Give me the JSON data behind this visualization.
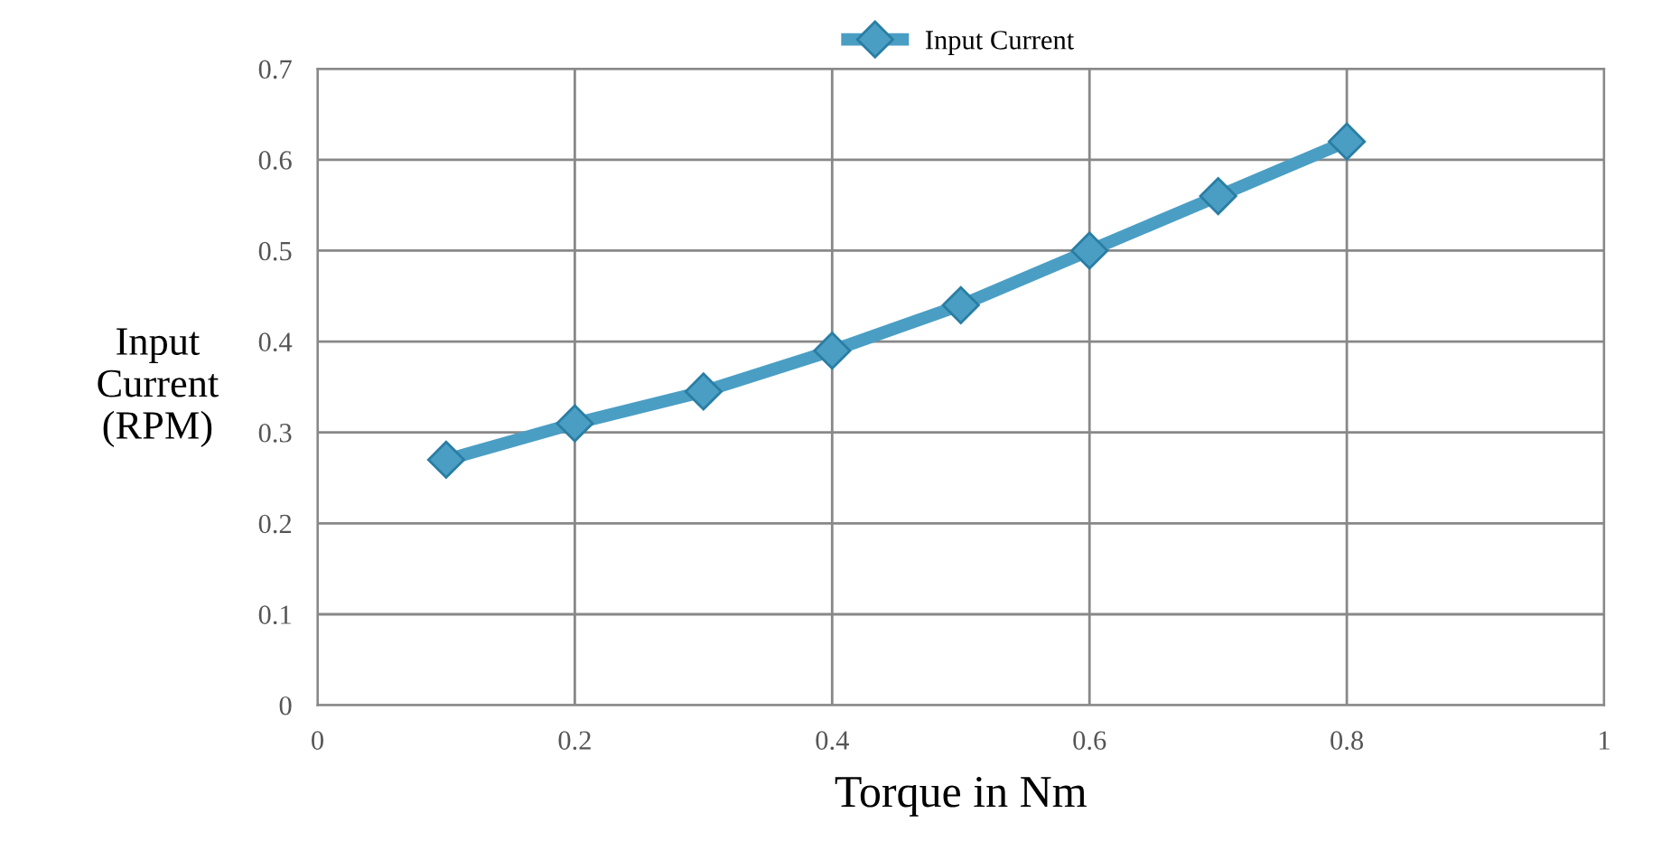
{
  "chart_data": {
    "type": "line",
    "xlabel": "Torque in Nm",
    "ylabel": "Input\nCurrent\n(RPM)",
    "x": [
      0.1,
      0.2,
      0.3,
      0.4,
      0.5,
      0.6,
      0.7,
      0.8
    ],
    "series": [
      {
        "name": "Input Current",
        "color": "#4a9ec4",
        "values": [
          0.27,
          0.31,
          0.345,
          0.39,
          0.44,
          0.5,
          0.56,
          0.62
        ]
      }
    ],
    "xlim": [
      0,
      1
    ],
    "xticks": [
      0,
      0.2,
      0.4,
      0.6,
      0.8,
      1
    ],
    "ylim": [
      0,
      0.7
    ],
    "yticks": [
      0,
      0.1,
      0.2,
      0.3,
      0.4,
      0.5,
      0.6,
      0.7
    ],
    "grid": true,
    "legend": "top",
    "marker": "diamond",
    "line_style": "solid"
  }
}
